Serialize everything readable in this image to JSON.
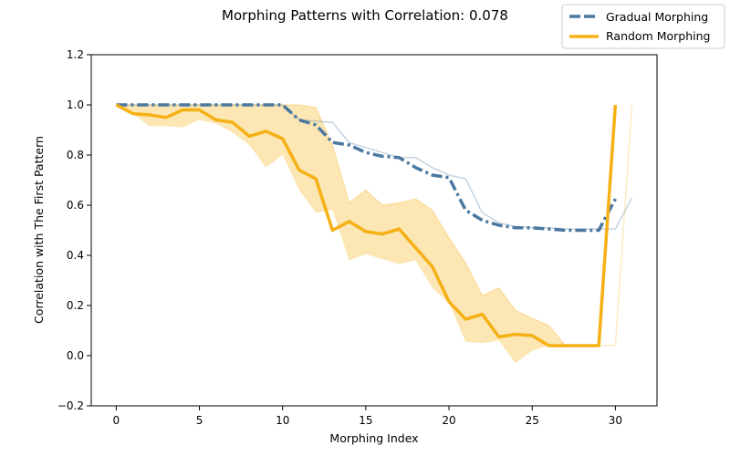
{
  "chart_data": {
    "type": "line",
    "title": "Morphing Patterns with Correlation: 0.078",
    "xlabel": "Morphing Index",
    "ylabel": "Correlation with The First Pattern",
    "xlim": [
      -1.5,
      32.5
    ],
    "ylim": [
      -0.2,
      1.2
    ],
    "xticks": [
      0,
      5,
      10,
      15,
      20,
      25,
      30
    ],
    "yticks": [
      -0.2,
      0.0,
      0.2,
      0.4,
      0.6,
      0.8,
      1.0,
      1.2
    ],
    "ytick_labels": [
      "−0.2",
      "0.0",
      "0.2",
      "0.4",
      "0.6",
      "0.8",
      "1.0",
      "1.2"
    ],
    "legend_position": "top-right",
    "grid": false,
    "series": [
      {
        "name": "Gradual Morphing",
        "color": "#4a78a0",
        "style": "dashdot",
        "x": [
          0,
          1,
          2,
          3,
          4,
          5,
          6,
          7,
          8,
          9,
          10,
          11,
          12,
          13,
          14,
          15,
          16,
          17,
          18,
          19,
          20,
          21,
          22,
          23,
          24,
          25,
          26,
          27,
          28,
          29,
          30
        ],
        "values": [
          1.0,
          1.0,
          1.0,
          1.0,
          1.0,
          1.0,
          1.0,
          1.0,
          1.0,
          1.0,
          1.0,
          0.94,
          0.92,
          0.85,
          0.84,
          0.81,
          0.795,
          0.79,
          0.75,
          0.72,
          0.71,
          0.58,
          0.54,
          0.52,
          0.51,
          0.51,
          0.505,
          0.5,
          0.5,
          0.5,
          0.625
        ],
        "band_upper": [
          1.0,
          1.0,
          1.0,
          1.0,
          1.0,
          1.0,
          1.0,
          1.0,
          1.0,
          1.0,
          1.0,
          0.94,
          0.935,
          0.93,
          0.85,
          0.83,
          0.81,
          0.79,
          0.79,
          0.75,
          0.72,
          0.705,
          0.57,
          0.53,
          0.515,
          0.51,
          0.51,
          0.505,
          0.505,
          0.505,
          0.505,
          0.63
        ],
        "band_x": [
          0,
          1,
          2,
          3,
          4,
          5,
          6,
          7,
          8,
          9,
          10,
          11,
          12,
          13,
          14,
          15,
          16,
          17,
          18,
          19,
          20,
          21,
          22,
          23,
          24,
          25,
          26,
          27,
          28,
          29,
          30,
          31
        ]
      },
      {
        "name": "Random Morphing",
        "color": "#f5b015",
        "style": "solid",
        "x": [
          0,
          1,
          2,
          3,
          4,
          5,
          6,
          7,
          8,
          9,
          10,
          11,
          12,
          13,
          14,
          15,
          16,
          17,
          18,
          19,
          20,
          21,
          22,
          23,
          24,
          25,
          26,
          27,
          28,
          29,
          30
        ],
        "values": [
          1.0,
          0.965,
          0.96,
          0.95,
          0.98,
          0.98,
          0.94,
          0.93,
          0.875,
          0.895,
          0.865,
          0.74,
          0.705,
          0.5,
          0.535,
          0.495,
          0.485,
          0.505,
          0.43,
          0.355,
          0.215,
          0.145,
          0.165,
          0.075,
          0.085,
          0.08,
          0.04,
          0.04,
          0.04,
          0.04,
          1.0
        ],
        "band_x": [
          0,
          1,
          2,
          3,
          4,
          5,
          6,
          7,
          8,
          9,
          10,
          11,
          12,
          13,
          14,
          15,
          16,
          17,
          18,
          19,
          20,
          21,
          22,
          23,
          24,
          25,
          26,
          27,
          28,
          29,
          30,
          31
        ],
        "band_upper": [
          1.0,
          1.0,
          1.0,
          1.0,
          1.0,
          1.0,
          1.0,
          1.0,
          1.0,
          1.0,
          1.0,
          1.0,
          0.99,
          0.84,
          0.61,
          0.66,
          0.6,
          0.61,
          0.625,
          0.58,
          0.47,
          0.37,
          0.24,
          0.27,
          0.18,
          0.15,
          0.12,
          0.04,
          0.04,
          0.04,
          0.04,
          1.0
        ],
        "band_lower": [
          1.0,
          0.965,
          0.915,
          0.915,
          0.91,
          0.94,
          0.925,
          0.89,
          0.84,
          0.75,
          0.8,
          0.66,
          0.57,
          0.58,
          0.38,
          0.405,
          0.385,
          0.365,
          0.38,
          0.27,
          0.21,
          0.055,
          0.05,
          0.06,
          -0.03,
          0.02,
          0.04,
          0.04,
          0.04,
          0.04,
          0.04,
          1.0
        ]
      }
    ]
  }
}
